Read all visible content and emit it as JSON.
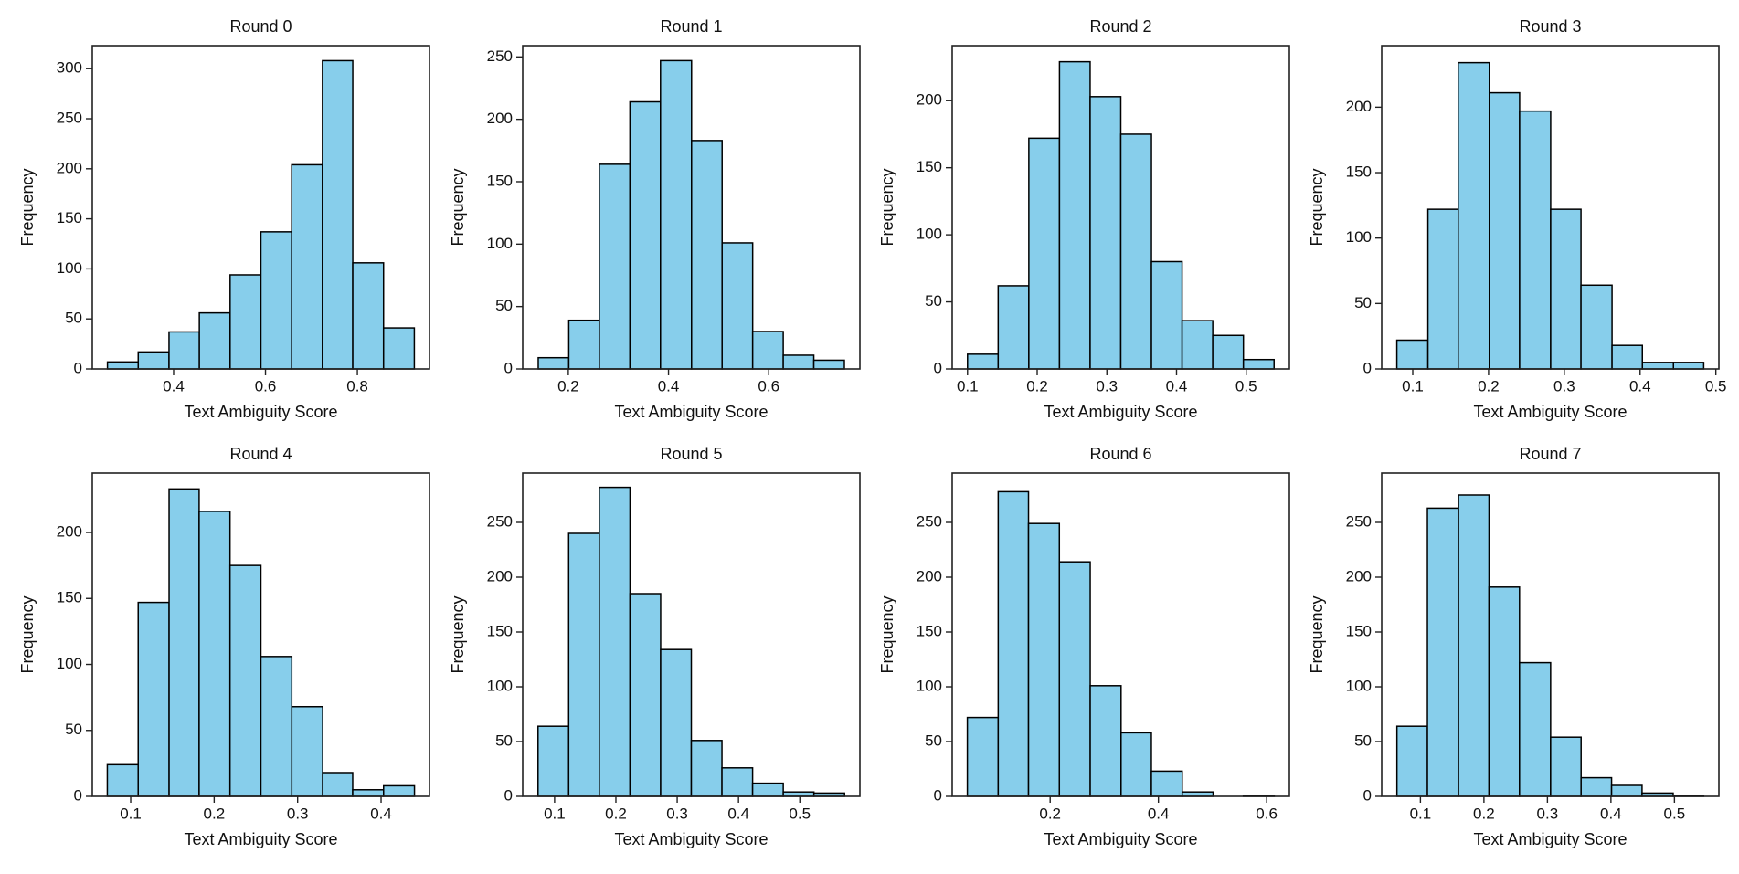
{
  "chart_data": [
    {
      "type": "histogram",
      "title": "Round 0",
      "xlabel": "Text Ambiguity Score",
      "ylabel": "Frequency",
      "color": "#87ceeb",
      "bins": [
        0.256,
        0.323,
        0.39,
        0.456,
        0.523,
        0.59,
        0.657,
        0.724,
        0.79,
        0.857,
        0.924
      ],
      "values": [
        7,
        17,
        37,
        56,
        94,
        137,
        204,
        308,
        106,
        41
      ],
      "xlim": [
        0.223,
        0.957
      ],
      "ylim": [
        0,
        323
      ],
      "xticks": [
        0.4,
        0.6,
        0.8
      ],
      "yticks": [
        0,
        50,
        100,
        150,
        200,
        250,
        300
      ]
    },
    {
      "type": "histogram",
      "title": "Round 1",
      "xlabel": "Text Ambiguity Score",
      "ylabel": "Frequency",
      "color": "#87ceeb",
      "bins": [
        0.14,
        0.201,
        0.262,
        0.323,
        0.384,
        0.446,
        0.507,
        0.568,
        0.629,
        0.69,
        0.751
      ],
      "values": [
        9,
        39,
        164,
        214,
        247,
        183,
        101,
        30,
        11,
        7
      ],
      "xlim": [
        0.109,
        0.782
      ],
      "ylim": [
        0,
        259
      ],
      "xticks": [
        0.2,
        0.4,
        0.6
      ],
      "yticks": [
        0,
        50,
        100,
        150,
        200,
        250
      ]
    },
    {
      "type": "histogram",
      "title": "Round 2",
      "xlabel": "Text Ambiguity Score",
      "ylabel": "Frequency",
      "color": "#87ceeb",
      "bins": [
        0.1,
        0.144,
        0.188,
        0.232,
        0.276,
        0.32,
        0.364,
        0.408,
        0.452,
        0.496,
        0.54
      ],
      "values": [
        11,
        62,
        172,
        229,
        203,
        175,
        80,
        36,
        25,
        7
      ],
      "xlim": [
        0.078,
        0.562
      ],
      "ylim": [
        0,
        241
      ],
      "xticks": [
        0.1,
        0.2,
        0.3,
        0.4,
        0.5
      ],
      "yticks": [
        0,
        50,
        100,
        150,
        200
      ]
    },
    {
      "type": "histogram",
      "title": "Round 3",
      "xlabel": "Text Ambiguity Score",
      "ylabel": "Frequency",
      "color": "#87ceeb",
      "bins": [
        0.079,
        0.12,
        0.16,
        0.201,
        0.241,
        0.282,
        0.322,
        0.363,
        0.403,
        0.444,
        0.484
      ],
      "values": [
        22,
        122,
        234,
        211,
        197,
        122,
        64,
        18,
        5,
        5
      ],
      "xlim": [
        0.059,
        0.504
      ],
      "ylim": [
        0,
        247
      ],
      "xticks": [
        0.1,
        0.2,
        0.3,
        0.4,
        0.5
      ],
      "yticks": [
        0,
        50,
        100,
        150,
        200
      ]
    },
    {
      "type": "histogram",
      "title": "Round 4",
      "xlabel": "Text Ambiguity Score",
      "ylabel": "Frequency",
      "color": "#87ceeb",
      "bins": [
        0.072,
        0.109,
        0.146,
        0.182,
        0.219,
        0.256,
        0.293,
        0.33,
        0.366,
        0.403,
        0.44
      ],
      "values": [
        24,
        147,
        233,
        216,
        175,
        106,
        68,
        18,
        5,
        8
      ],
      "xlim": [
        0.054,
        0.458
      ],
      "ylim": [
        0,
        245
      ],
      "xticks": [
        0.1,
        0.2,
        0.3,
        0.4
      ],
      "yticks": [
        0,
        50,
        100,
        150,
        200
      ]
    },
    {
      "type": "histogram",
      "title": "Round 5",
      "xlabel": "Text Ambiguity Score",
      "ylabel": "Frequency",
      "color": "#87ceeb",
      "bins": [
        0.073,
        0.123,
        0.173,
        0.223,
        0.273,
        0.323,
        0.373,
        0.423,
        0.473,
        0.523,
        0.573
      ],
      "values": [
        64,
        240,
        282,
        185,
        134,
        51,
        26,
        12,
        4,
        3
      ],
      "xlim": [
        0.048,
        0.598
      ],
      "ylim": [
        0,
        295
      ],
      "xticks": [
        0.1,
        0.2,
        0.3,
        0.4,
        0.5
      ],
      "yticks": [
        0,
        50,
        100,
        150,
        200,
        250
      ]
    },
    {
      "type": "histogram",
      "title": "Round 6",
      "xlabel": "Text Ambiguity Score",
      "ylabel": "Frequency",
      "color": "#87ceeb",
      "bins": [
        0.047,
        0.104,
        0.16,
        0.217,
        0.274,
        0.331,
        0.387,
        0.444,
        0.501,
        0.557,
        0.614
      ],
      "values": [
        72,
        278,
        249,
        214,
        101,
        58,
        23,
        4,
        0,
        1
      ],
      "xlim": [
        0.019,
        0.642
      ],
      "ylim": [
        0,
        295
      ],
      "xticks": [
        0.2,
        0.4,
        0.6
      ],
      "yticks": [
        0,
        50,
        100,
        150,
        200,
        250
      ]
    },
    {
      "type": "histogram",
      "title": "Round 7",
      "xlabel": "Text Ambiguity Score",
      "ylabel": "Frequency",
      "color": "#87ceeb",
      "bins": [
        0.063,
        0.111,
        0.16,
        0.208,
        0.256,
        0.305,
        0.353,
        0.401,
        0.449,
        0.498,
        0.546
      ],
      "values": [
        64,
        263,
        275,
        191,
        122,
        54,
        17,
        10,
        3,
        1
      ],
      "xlim": [
        0.039,
        0.57
      ],
      "ylim": [
        0,
        295
      ],
      "xticks": [
        0.1,
        0.2,
        0.3,
        0.4,
        0.5
      ],
      "yticks": [
        0,
        50,
        100,
        150,
        200,
        250
      ]
    }
  ]
}
